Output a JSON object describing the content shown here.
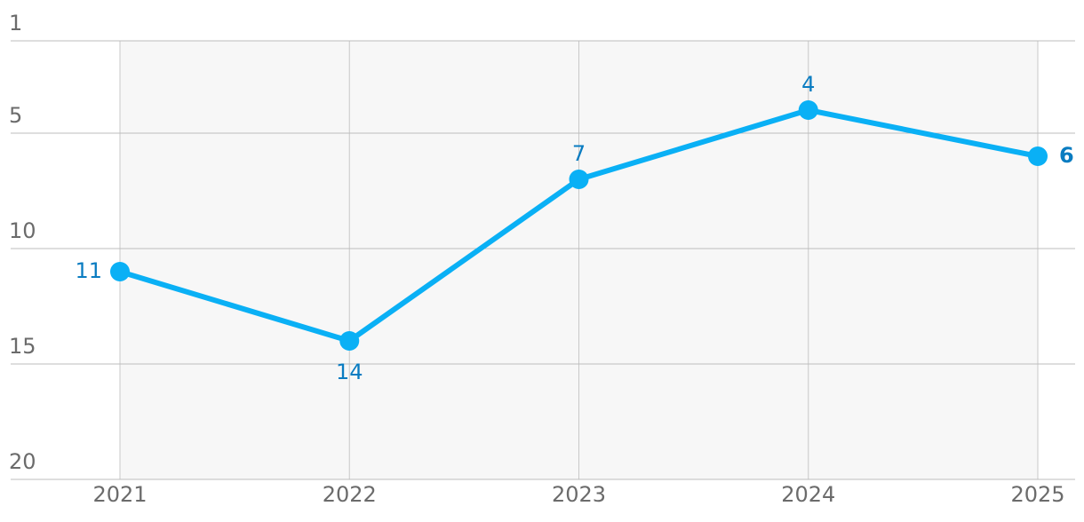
{
  "chart_data": {
    "type": "line",
    "categories": [
      "2021",
      "2022",
      "2023",
      "2024",
      "2025"
    ],
    "series": [
      {
        "color": "#0ab0f5",
        "values": [
          11,
          14,
          7,
          4,
          6
        ]
      }
    ],
    "ylim": [
      1,
      20
    ],
    "yticks": [
      1,
      5,
      10,
      15,
      20
    ],
    "y_reversed": true,
    "grid": true
  }
}
